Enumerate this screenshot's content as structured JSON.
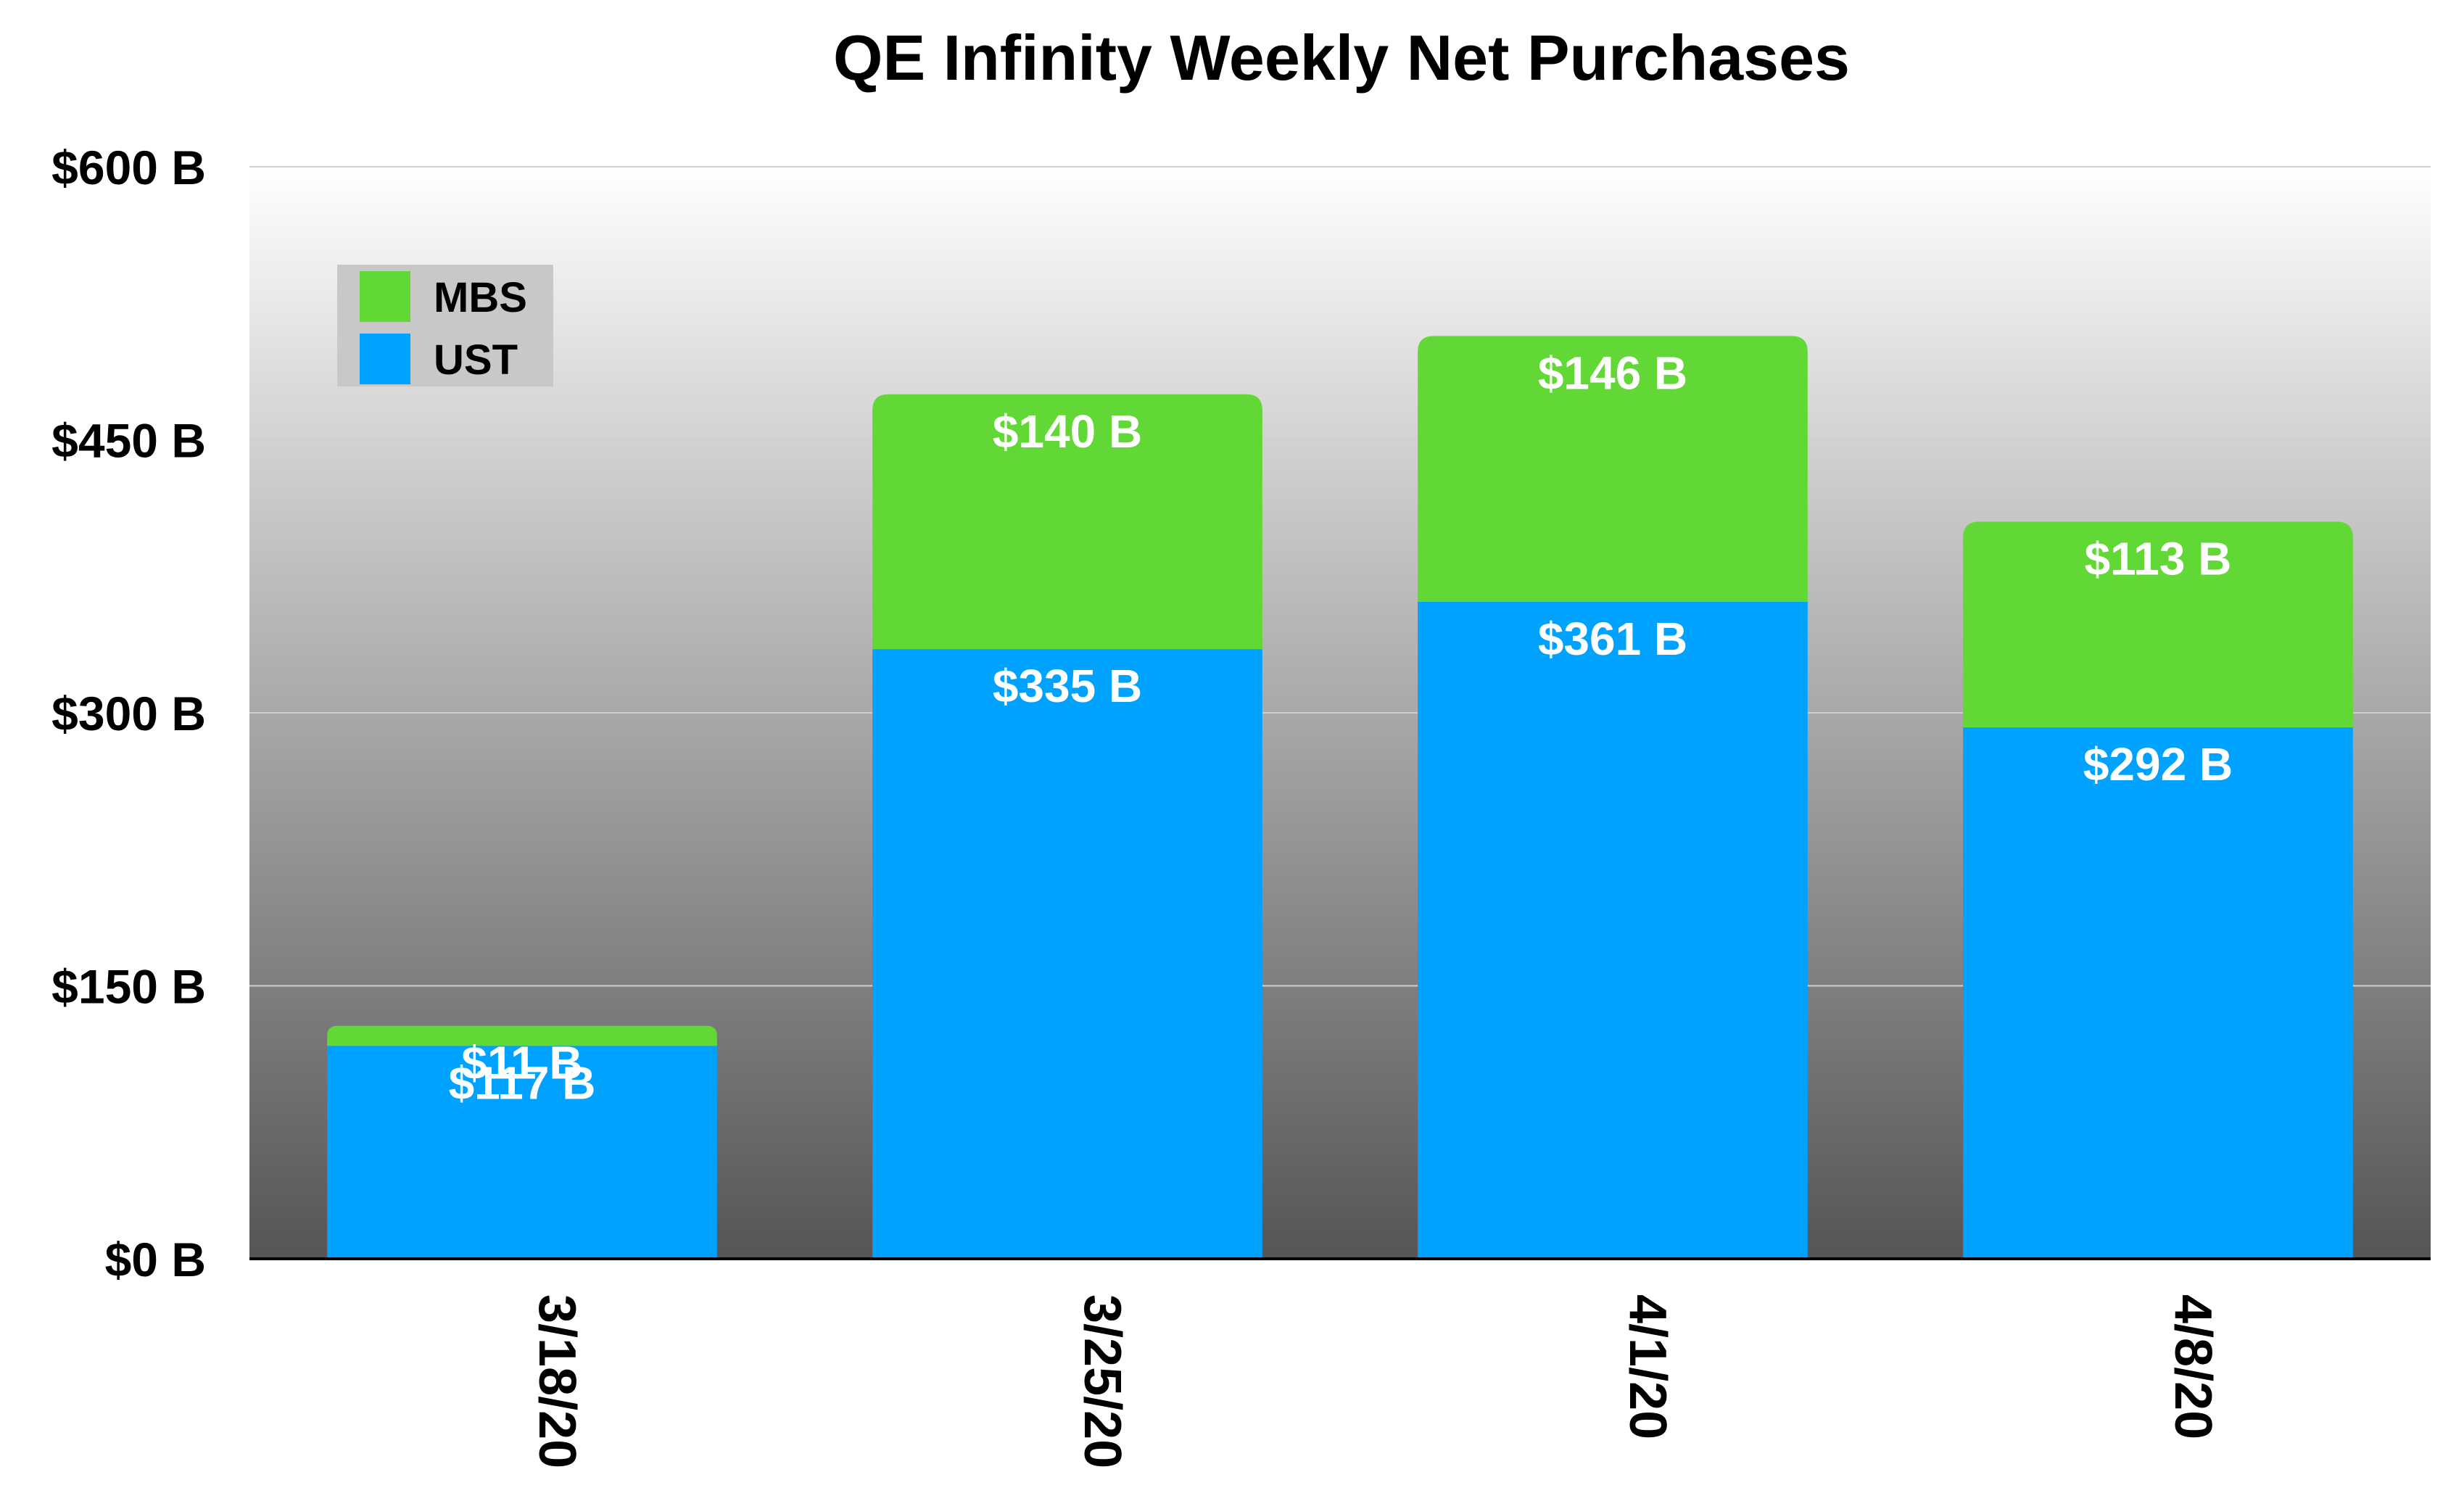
{
  "chart_data": {
    "type": "bar",
    "stacked": true,
    "title": "QE Infinity Weekly Net Purchases",
    "categories": [
      "3/18/20",
      "3/25/20",
      "4/1/20",
      "4/8/20"
    ],
    "series": [
      {
        "name": "UST",
        "color": "#00A2FF",
        "values": [
          117,
          335,
          361,
          292
        ],
        "labels": [
          "$117 B",
          "$335 B",
          "$361 B",
          "$292 B"
        ]
      },
      {
        "name": "MBS",
        "color": "#61D836",
        "values": [
          11,
          140,
          146,
          113
        ],
        "labels": [
          "$11 B",
          "$140 B",
          "$146 B",
          "$113 B"
        ]
      }
    ],
    "yticks": [
      0,
      150,
      300,
      450,
      600
    ],
    "ytick_labels": [
      "$0 B",
      "$150 B",
      "$300 B",
      "$450 B",
      "$600 B"
    ],
    "ylim": [
      0,
      600
    ],
    "xlabel": "",
    "ylabel": "",
    "grid": true,
    "legend": {
      "position": "top-left",
      "entries": [
        "MBS",
        "UST"
      ]
    },
    "x_tick_rotation": "vertical"
  }
}
